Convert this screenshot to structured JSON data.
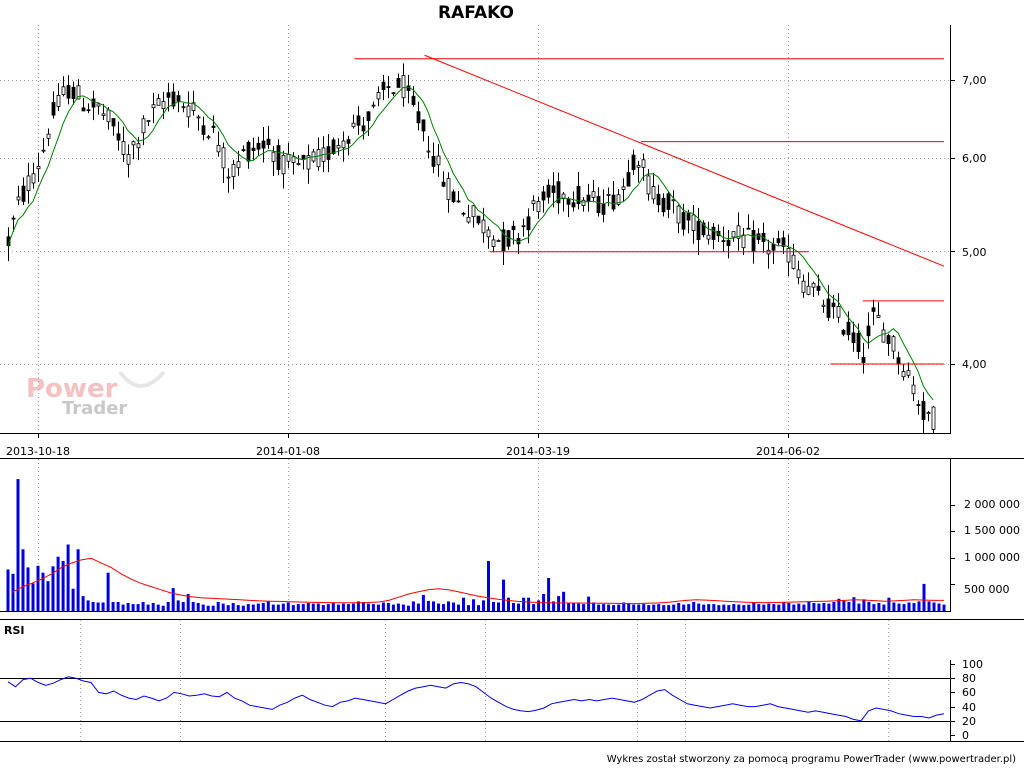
{
  "colors": {
    "candle": "#000000",
    "ma": "#008000",
    "volume": "#0000e0",
    "volume_ma": "#ff0000",
    "rsi": "#0000ff",
    "trendline": "#ff0000",
    "grid": "#a0a0a0"
  },
  "credit": "Wykres został stworzony za pomocą programu PowerTrader (www.powertrader.pl)",
  "logo": {
    "line1": "Power",
    "line2": "Trader"
  },
  "chart_data": [
    {
      "type": "candlestick",
      "title": "RAFAKO",
      "x_tick_labels": [
        "2013-10-18",
        "2014-01-08",
        "2014-03-19",
        "2014-06-02"
      ],
      "y_tick_labels": [
        "4,00",
        "5,00",
        "6,00",
        "7,00"
      ],
      "y_ticks": [
        4.0,
        5.0,
        6.0,
        7.0
      ],
      "ylim": [
        3.5,
        7.4
      ],
      "scale": "log",
      "series": [
        {
          "name": "",
          "close_path": [
            [
              2013.79,
              5.1
            ],
            [
              2013.81,
              5.5
            ],
            [
              2013.85,
              6.0
            ],
            [
              2013.87,
              6.5
            ],
            [
              2013.9,
              6.9
            ],
            [
              2013.93,
              6.7
            ],
            [
              2013.96,
              6.6
            ],
            [
              2013.99,
              6.3
            ],
            [
              2014.01,
              6.0
            ],
            [
              2014.05,
              6.5
            ],
            [
              2014.09,
              6.8
            ],
            [
              2014.13,
              6.6
            ],
            [
              2014.17,
              6.3
            ],
            [
              2014.2,
              5.8
            ],
            [
              2014.23,
              6.1
            ],
            [
              2014.27,
              6.2
            ],
            [
              2014.3,
              5.9
            ],
            [
              2014.33,
              5.9
            ],
            [
              2014.37,
              6.0
            ],
            [
              2014.4,
              6.2
            ],
            [
              2014.43,
              6.4
            ],
            [
              2014.46,
              6.5
            ],
            [
              2014.49,
              6.9
            ],
            [
              2014.52,
              6.9
            ],
            [
              2014.56,
              6.3
            ],
            [
              2014.59,
              5.8
            ],
            [
              2014.62,
              5.5
            ],
            [
              2014.66,
              5.3
            ],
            [
              2014.7,
              5.1
            ],
            [
              2014.73,
              5.15
            ],
            [
              2014.77,
              5.5
            ],
            [
              2014.8,
              5.6
            ],
            [
              2014.83,
              5.6
            ],
            [
              2014.87,
              5.5
            ],
            [
              2014.9,
              5.5
            ],
            [
              2014.93,
              5.7
            ],
            [
              2014.95,
              6.1
            ],
            [
              2014.98,
              5.6
            ],
            [
              2015.01,
              5.5
            ],
            [
              2015.04,
              5.3
            ],
            [
              2015.08,
              5.2
            ],
            [
              2015.12,
              5.15
            ],
            [
              2015.16,
              5.1
            ],
            [
              2015.19,
              5.05
            ],
            [
              2015.23,
              5.0
            ],
            [
              2015.26,
              4.7
            ],
            [
              2015.3,
              4.5
            ],
            [
              2015.34,
              4.3
            ],
            [
              2015.37,
              4.1
            ],
            [
              2015.39,
              4.4
            ],
            [
              2015.42,
              4.2
            ],
            [
              2015.45,
              3.95
            ],
            [
              2015.48,
              3.65
            ],
            [
              2015.5,
              3.6
            ]
          ]
        }
      ],
      "moving_average": "green",
      "horizontal_lines": [
        {
          "y": 7.3,
          "from": 2014.43,
          "to": 2015.52
        },
        {
          "y": 6.2,
          "from": 2014.96,
          "to": 2015.52
        },
        {
          "y": 4.99,
          "from": 2014.68,
          "to": 2015.27
        },
        {
          "y": 4.53,
          "from": 2015.37,
          "to": 2015.52
        },
        {
          "y": 4.0,
          "from": 2015.31,
          "to": 2015.52
        }
      ],
      "trendline": {
        "from": [
          2014.56,
          7.35
        ],
        "to": [
          2015.52,
          4.85
        ]
      }
    },
    {
      "type": "bar",
      "title": "",
      "y_tick_labels": [
        "500 000",
        "1 000 000",
        "1 500 000",
        "2 000 000"
      ],
      "y_ticks": [
        500000,
        1000000,
        1500000,
        2000000
      ],
      "ylim": [
        0,
        2500000
      ],
      "series": [
        {
          "name": "",
          "values": [
            780000,
            700000,
            2480000,
            1160000,
            820000,
            520000,
            850000,
            720000,
            560000,
            840000,
            1020000,
            940000,
            1250000,
            420000,
            1160000,
            280000,
            200000,
            170000,
            160000,
            160000,
            720000,
            170000,
            170000,
            120000,
            150000,
            130000,
            130000,
            170000,
            120000,
            150000,
            120000,
            100000,
            170000,
            430000,
            200000,
            170000,
            320000,
            170000,
            150000,
            120000,
            100000,
            100000,
            170000,
            140000,
            110000,
            150000,
            110000,
            100000,
            130000,
            120000,
            140000,
            150000,
            180000,
            120000,
            120000,
            140000,
            160000,
            110000,
            130000,
            130000,
            150000,
            140000,
            140000,
            110000,
            130000,
            160000,
            120000,
            140000,
            130000,
            140000,
            180000,
            170000,
            140000,
            130000,
            120000,
            160000,
            150000,
            120000,
            140000,
            120000,
            100000,
            180000,
            140000,
            300000,
            190000,
            180000,
            140000,
            130000,
            180000,
            160000,
            120000,
            250000,
            110000,
            220000,
            110000,
            200000,
            940000,
            170000,
            160000,
            590000,
            250000,
            150000,
            140000,
            250000,
            250000,
            130000,
            200000,
            320000,
            620000,
            180000,
            280000,
            360000,
            150000,
            150000,
            140000,
            130000,
            270000,
            160000,
            120000,
            130000,
            120000,
            110000,
            120000,
            160000,
            150000,
            120000,
            120000,
            130000,
            110000,
            120000,
            130000,
            110000,
            110000,
            120000,
            150000,
            120000,
            130000,
            170000,
            140000,
            120000,
            130000,
            130000,
            110000,
            120000,
            110000,
            130000,
            120000,
            110000,
            120000,
            170000,
            130000,
            120000,
            140000,
            130000,
            120000,
            170000,
            150000,
            120000,
            140000,
            120000,
            170000,
            150000,
            140000,
            150000,
            140000,
            170000,
            230000,
            190000,
            170000,
            260000,
            140000,
            220000,
            170000,
            130000,
            150000,
            120000,
            250000,
            160000,
            140000,
            130000,
            160000,
            150000,
            180000,
            510000,
            180000,
            160000,
            140000,
            120000
          ]
        },
        {
          "name": "",
          "values": [
            350000,
            450000,
            520000,
            600000,
            700000,
            820000,
            900000,
            960000,
            990000,
            900000,
            820000,
            700000,
            600000,
            520000,
            460000,
            400000,
            340000,
            300000,
            270000,
            250000,
            240000,
            230000,
            220000,
            210000,
            200000,
            190000,
            185000,
            180000,
            175000,
            170000,
            165000,
            160000,
            158000,
            155000,
            155000,
            155000,
            160000,
            170000,
            200000,
            260000,
            320000,
            360000,
            400000,
            420000,
            400000,
            360000,
            320000,
            280000,
            250000,
            220000,
            200000,
            180000,
            170000,
            160000,
            155000,
            150000,
            150000,
            150000,
            148000,
            146000,
            144000,
            142000,
            140000,
            140000,
            145000,
            150000,
            160000,
            180000,
            200000,
            210000,
            205000,
            195000,
            185000,
            175000,
            165000,
            160000,
            158000,
            160000,
            165000,
            170000,
            175000,
            180000,
            185000,
            190000,
            200000,
            210000,
            205000,
            195000,
            185000,
            190000,
            200000,
            210000,
            205000,
            200000,
            200000
          ]
        }
      ]
    },
    {
      "type": "line",
      "title": "RSI",
      "y_tick_labels": [
        "0",
        "20",
        "40",
        "60",
        "80",
        "100"
      ],
      "y_ticks": [
        0,
        20,
        40,
        60,
        80,
        100
      ],
      "reference_lines": [
        20,
        80
      ],
      "ylim": [
        0,
        100
      ],
      "series": [
        {
          "name": "",
          "values": [
            75,
            68,
            78,
            80,
            74,
            70,
            73,
            78,
            82,
            80,
            76,
            74,
            60,
            58,
            62,
            56,
            52,
            50,
            55,
            52,
            48,
            52,
            60,
            58,
            55,
            56,
            58,
            55,
            54,
            60,
            52,
            48,
            42,
            40,
            38,
            36,
            42,
            46,
            52,
            56,
            50,
            46,
            42,
            40,
            46,
            48,
            52,
            50,
            48,
            46,
            44,
            50,
            56,
            62,
            66,
            68,
            70,
            68,
            66,
            72,
            74,
            72,
            68,
            60,
            52,
            46,
            40,
            36,
            34,
            33,
            35,
            38,
            44,
            46,
            48,
            50,
            48,
            50,
            48,
            50,
            52,
            50,
            48,
            46,
            50,
            56,
            62,
            64,
            56,
            50,
            44,
            42,
            40,
            38,
            40,
            42,
            44,
            42,
            40,
            40,
            42,
            44,
            40,
            38,
            36,
            34,
            32,
            34,
            32,
            30,
            28,
            26,
            22,
            20,
            34,
            38,
            36,
            34,
            30,
            28,
            26,
            26,
            24,
            28,
            30
          ]
        }
      ]
    }
  ]
}
